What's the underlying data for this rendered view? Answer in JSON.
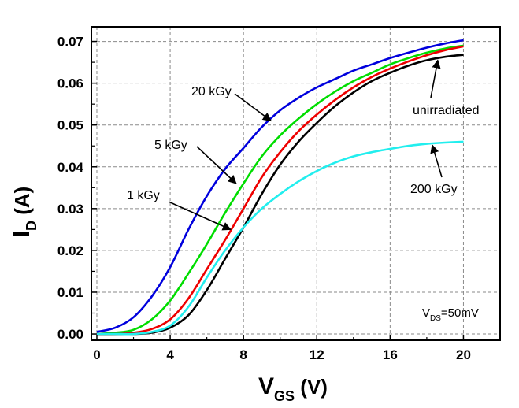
{
  "chart_data": {
    "type": "line",
    "title": "",
    "xlabel": {
      "main": "V",
      "sub": "GS",
      "unit": " (V)"
    },
    "ylabel": {
      "main": "I",
      "sub": "D",
      "unit": " (A)"
    },
    "xlim": [
      -0.3,
      22
    ],
    "ylim": [
      -0.0015,
      0.0735
    ],
    "x_ticks": [
      0,
      4,
      8,
      12,
      16,
      20
    ],
    "y_ticks": [
      0.0,
      0.01,
      0.02,
      0.03,
      0.04,
      0.05,
      0.06,
      0.07
    ],
    "x_tick_labels": [
      "0",
      "4",
      "8",
      "12",
      "16",
      "20"
    ],
    "y_tick_labels": [
      "0.00",
      "0.01",
      "0.02",
      "0.03",
      "0.04",
      "0.05",
      "0.06",
      "0.07"
    ],
    "grid": true,
    "x": [
      0,
      1,
      2,
      3,
      4,
      5,
      6,
      7,
      8,
      9,
      10,
      11,
      12,
      13,
      14,
      15,
      16,
      17,
      18,
      19,
      20
    ],
    "series": [
      {
        "name": "20 kGy",
        "color": "#0000dd",
        "values": [
          0.0005,
          0.0015,
          0.004,
          0.009,
          0.016,
          0.025,
          0.033,
          0.0395,
          0.0445,
          0.0495,
          0.0535,
          0.0565,
          0.059,
          0.061,
          0.063,
          0.0645,
          0.066,
          0.0673,
          0.0685,
          0.0695,
          0.0703
        ]
      },
      {
        "name": "5 kGy",
        "color": "#00dd00",
        "values": [
          0.0,
          0.0003,
          0.001,
          0.0035,
          0.008,
          0.0145,
          0.0215,
          0.029,
          0.036,
          0.0425,
          0.0475,
          0.0515,
          0.055,
          0.058,
          0.0605,
          0.0625,
          0.0645,
          0.066,
          0.0673,
          0.0683,
          0.069
        ]
      },
      {
        "name": "1 kGy",
        "color": "#ee0000",
        "values": [
          0.0,
          0.0,
          0.0003,
          0.0012,
          0.0035,
          0.0085,
          0.0155,
          0.0225,
          0.03,
          0.0375,
          0.0435,
          0.0485,
          0.0525,
          0.056,
          0.059,
          0.0615,
          0.0635,
          0.0652,
          0.0667,
          0.0679,
          0.0688
        ]
      },
      {
        "name": "unirradiated",
        "color": "#000000",
        "values": [
          0.0,
          0.0,
          0.0,
          0.0003,
          0.0015,
          0.0045,
          0.0105,
          0.018,
          0.0255,
          0.0335,
          0.0405,
          0.046,
          0.0505,
          0.0545,
          0.0578,
          0.0605,
          0.0625,
          0.0642,
          0.0655,
          0.0663,
          0.0668
        ]
      },
      {
        "name": "200 kGy",
        "color": "#22eeee",
        "values": [
          0.0,
          0.0,
          0.0,
          0.0005,
          0.002,
          0.0065,
          0.0135,
          0.02,
          0.0255,
          0.03,
          0.0335,
          0.0365,
          0.039,
          0.041,
          0.0425,
          0.0435,
          0.0443,
          0.045,
          0.0455,
          0.0458,
          0.046
        ]
      }
    ],
    "annotations": [
      {
        "text": "20 kGy",
        "series": "20 kGy",
        "anchor_x": 9.5,
        "anchor_y": 0.051
      },
      {
        "text": "5 kGy",
        "series": "5 kGy",
        "anchor_x": 7.6,
        "anchor_y": 0.036
      },
      {
        "text": "1 kGy",
        "series": "1 kGy",
        "anchor_x": 7.3,
        "anchor_y": 0.025
      },
      {
        "text": "unirradiated",
        "series": "unirradiated",
        "anchor_x": 18.6,
        "anchor_y": 0.0655
      },
      {
        "text": "200 kGy",
        "series": "200 kGy",
        "anchor_x": 18.3,
        "anchor_y": 0.0452
      }
    ],
    "condition": {
      "main": "V",
      "sub": "DS",
      "rest": "=50mV"
    }
  }
}
